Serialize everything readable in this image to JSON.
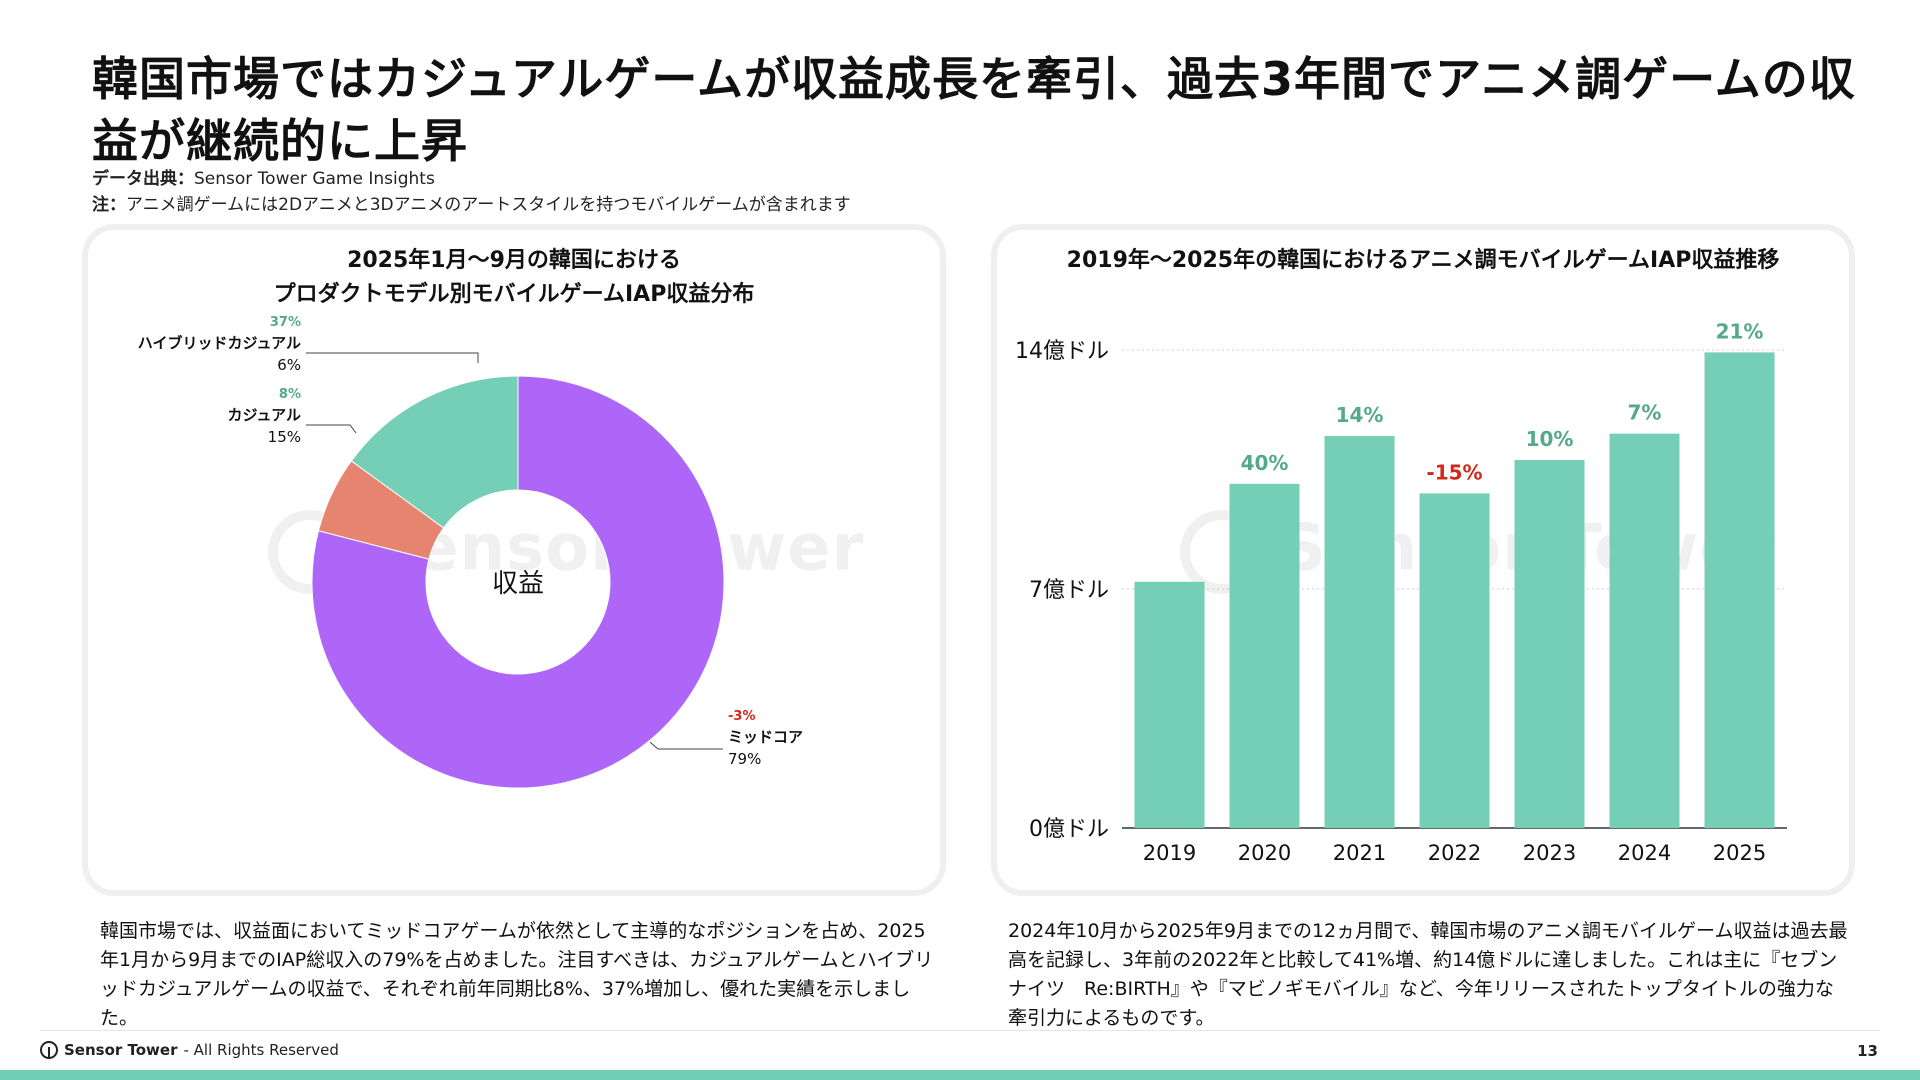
{
  "page": {
    "title": "韓国市場ではカジュアルゲームが収益成長を牽引、過去3年間でアニメ調ゲームの収益が継続的に上昇",
    "source_label": "データ出典：",
    "source_value": "Sensor Tower Game Insights",
    "note_label": "注：",
    "note_value": "アニメ調ゲームには2Dアニメと3Dアニメのアートスタイルを持つモバイルゲームが含まれます"
  },
  "left_text": "韓国市場では、収益面においてミッドコアゲームが依然として主導的なポジションを占め、2025年1月から9月までのIAP総収入の79%を占めました。注目すべきは、カジュアルゲームとハイブリッドカジュアルゲームの収益で、それぞれ前年同期比8%、37%増加し、優れた実績を示しました。",
  "right_text": "2024年10月から2025年9月までの12ヵ月間で、韓国市場のアニメ調モバイルゲーム収益は過去最高を記録し、3年前の2022年と比較して41%増、約14億ドルに達しました。これは主に『セブンナイツ　Re:BIRTH』や『マビノギモバイル』など、今年リリースされたトップタイトルの強力な牽引力によるものです。",
  "watermark": "Sensor Tower",
  "footer": {
    "brand": "Sensor Tower",
    "rights": "- All Rights Reserved",
    "page_number": "13"
  },
  "colors": {
    "purple": "#ad66f8",
    "teal": "#74cfb6",
    "salmon": "#e68470",
    "positive": "#55a98a",
    "negative": "#d1291b"
  },
  "chart_data": [
    {
      "type": "pie",
      "title_line1": "2025年1月〜9月の韓国における",
      "title_line2": "プロダクトモデル別モバイルゲームIAP収益分布",
      "center_label": "収益",
      "slices": [
        {
          "name": "ミッドコア",
          "value": 79,
          "value_label": "79%",
          "yoy": "-3%",
          "color": "#ad66f8"
        },
        {
          "name": "ハイブリッドカジュアル",
          "value": 6,
          "value_label": "6%",
          "yoy": "37%",
          "color": "#e68470"
        },
        {
          "name": "カジュアル",
          "value": 15,
          "value_label": "15%",
          "yoy": "8%",
          "color": "#74cfb6"
        }
      ]
    },
    {
      "type": "bar",
      "title": "2019年〜2025年の韓国におけるアニメ調モバイルゲームIAP収益推移",
      "categories": [
        "2019",
        "2020",
        "2021",
        "2022",
        "2023",
        "2024",
        "2025"
      ],
      "values": [
        5.15,
        7.2,
        8.2,
        7.0,
        7.7,
        8.25,
        9.95
      ],
      "growth_labels": [
        "",
        "40%",
        "14%",
        "-15%",
        "10%",
        "7%",
        "21%"
      ],
      "ylim": [
        0,
        10
      ],
      "yticks": [
        {
          "value": 0,
          "label": "0億ドル"
        },
        {
          "value": 5,
          "label": "7億ドル"
        },
        {
          "value": 10,
          "label": "14億ドル"
        }
      ],
      "grid": true,
      "color": "#74cfb6"
    }
  ]
}
